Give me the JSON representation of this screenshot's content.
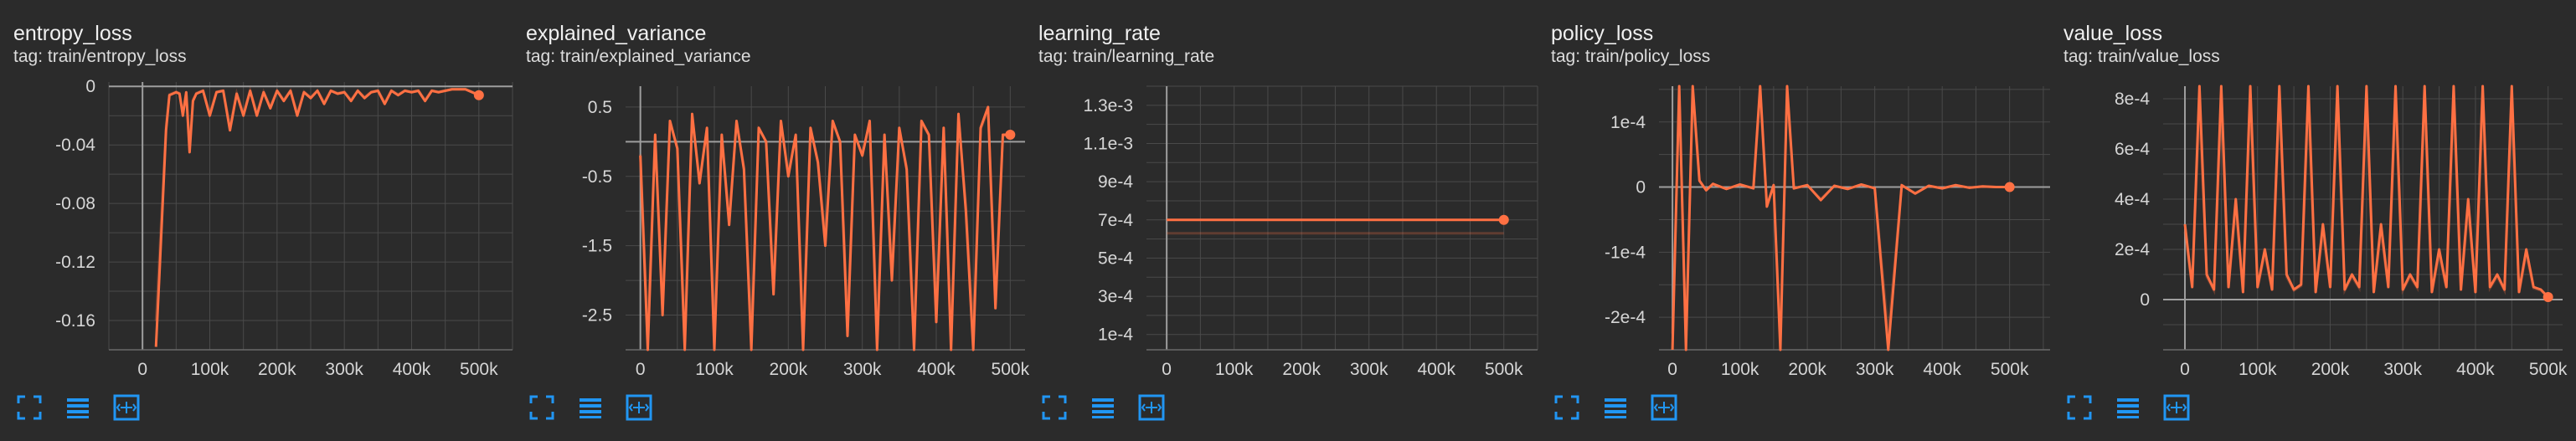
{
  "accent": "#ff7043",
  "grid_color": "#4a4a4a",
  "toolbar_icons": [
    "fullscreen-icon",
    "data-table-icon",
    "fit-domain-icon"
  ],
  "cards": [
    {
      "title": "entropy_loss",
      "tag": "tag: train/entropy_loss",
      "chart_data": {
        "type": "line",
        "x_ticks": [
          0,
          100000,
          200000,
          300000,
          400000,
          500000
        ],
        "x_tick_labels": [
          "0",
          "100k",
          "200k",
          "300k",
          "400k",
          "500k"
        ],
        "y_ticks": [
          0,
          -0.04,
          -0.08,
          -0.12,
          -0.16
        ],
        "y_tick_labels": [
          "0",
          "-0.04",
          "-0.08",
          "-0.12",
          "-0.16"
        ],
        "xlim": [
          -50000,
          550000
        ],
        "ylim": [
          -0.18,
          0.003
        ],
        "series": [
          {
            "x": [
              20000,
              25000,
              30000,
              35000,
              40000,
              45000,
              50000,
              55000,
              60000,
              65000,
              70000,
              75000,
              80000,
              90000,
              100000,
              110000,
              120000,
              130000,
              140000,
              150000,
              160000,
              170000,
              180000,
              190000,
              200000,
              210000,
              220000,
              230000,
              240000,
              250000,
              260000,
              270000,
              280000,
              290000,
              300000,
              310000,
              320000,
              330000,
              340000,
              350000,
              360000,
              370000,
              380000,
              390000,
              400000,
              410000,
              420000,
              430000,
              440000,
              450000,
              460000,
              470000,
              480000,
              490000,
              500000
            ],
            "y": [
              -0.178,
              -0.13,
              -0.08,
              -0.03,
              -0.006,
              -0.005,
              -0.004,
              -0.005,
              -0.02,
              -0.004,
              -0.045,
              -0.01,
              -0.005,
              -0.003,
              -0.02,
              -0.004,
              -0.003,
              -0.03,
              -0.005,
              -0.02,
              -0.003,
              -0.02,
              -0.004,
              -0.015,
              -0.003,
              -0.01,
              -0.003,
              -0.02,
              -0.004,
              -0.008,
              -0.003,
              -0.012,
              -0.003,
              -0.005,
              -0.004,
              -0.01,
              -0.003,
              -0.008,
              -0.004,
              -0.003,
              -0.012,
              -0.003,
              -0.006,
              -0.003,
              -0.004,
              -0.003,
              -0.01,
              -0.003,
              -0.004,
              -0.003,
              -0.002,
              -0.002,
              -0.002,
              -0.004,
              -0.006
            ]
          }
        ]
      }
    },
    {
      "title": "explained_variance",
      "tag": "tag: train/explained_variance",
      "chart_data": {
        "type": "line",
        "x_ticks": [
          0,
          100000,
          200000,
          300000,
          400000,
          500000
        ],
        "x_tick_labels": [
          "0",
          "100k",
          "200k",
          "300k",
          "400k",
          "500k"
        ],
        "y_ticks": [
          0.5,
          -0.5,
          -1.5,
          -2.5
        ],
        "y_tick_labels": [
          "0.5",
          "-0.5",
          "-1.5",
          "-2.5"
        ],
        "xlim": [
          -20000,
          520000
        ],
        "ylim": [
          -3.0,
          0.8
        ],
        "series": [
          {
            "x": [
              0,
              10000,
              20000,
              30000,
              40000,
              50000,
              60000,
              70000,
              80000,
              90000,
              100000,
              110000,
              120000,
              130000,
              140000,
              150000,
              160000,
              170000,
              180000,
              190000,
              200000,
              210000,
              220000,
              230000,
              240000,
              250000,
              260000,
              270000,
              280000,
              290000,
              300000,
              310000,
              320000,
              330000,
              340000,
              350000,
              360000,
              370000,
              380000,
              390000,
              400000,
              410000,
              420000,
              430000,
              440000,
              450000,
              460000,
              470000,
              480000,
              490000,
              500000
            ],
            "y": [
              -0.2,
              -3.0,
              0.1,
              -2.5,
              0.3,
              -0.1,
              -3.0,
              0.4,
              -0.6,
              0.2,
              -3.0,
              0.1,
              -1.2,
              0.3,
              -0.4,
              -3.0,
              0.2,
              0.0,
              -2.2,
              0.3,
              -0.5,
              0.1,
              -3.0,
              0.2,
              -0.3,
              -1.5,
              0.3,
              0.0,
              -2.8,
              0.1,
              -0.2,
              0.3,
              -3.0,
              0.1,
              -2.0,
              0.2,
              -0.4,
              -3.0,
              0.3,
              0.1,
              -2.6,
              0.2,
              -3.0,
              0.4,
              -1.0,
              -3.0,
              0.2,
              0.5,
              -2.4,
              0.1,
              0.1
            ]
          }
        ]
      }
    },
    {
      "title": "learning_rate",
      "tag": "tag: train/learning_rate",
      "chart_data": {
        "type": "line",
        "x_ticks": [
          0,
          100000,
          200000,
          300000,
          400000,
          500000
        ],
        "x_tick_labels": [
          "0",
          "100k",
          "200k",
          "300k",
          "400k",
          "500k"
        ],
        "y_ticks": [
          0.0013,
          0.0011,
          0.0009,
          0.0007,
          0.0005,
          0.0003,
          0.0001
        ],
        "y_tick_labels": [
          "1.3e-3",
          "1.1e-3",
          "9e-4",
          "7e-4",
          "5e-4",
          "3e-4",
          "1e-4"
        ],
        "xlim": [
          -30000,
          550000
        ],
        "ylim": [
          2e-05,
          0.0014
        ],
        "series": [
          {
            "x": [
              0,
              500000
            ],
            "y": [
              0.0007,
              0.0007
            ]
          }
        ]
      }
    },
    {
      "title": "policy_loss",
      "tag": "tag: train/policy_loss",
      "chart_data": {
        "type": "line",
        "x_ticks": [
          0,
          100000,
          200000,
          300000,
          400000,
          500000
        ],
        "x_tick_labels": [
          "0",
          "100k",
          "200k",
          "300k",
          "400k",
          "500k"
        ],
        "y_ticks": [
          0.0001,
          0,
          -0.0001,
          -0.0002
        ],
        "y_tick_labels": [
          "1e-4",
          "0",
          "-1e-4",
          "-2e-4"
        ],
        "xlim": [
          -20000,
          560000
        ],
        "ylim": [
          -0.00025,
          0.000155
        ],
        "series": [
          {
            "x": [
              0,
              10000,
              20000,
              30000,
              40000,
              50000,
              60000,
              80000,
              100000,
              120000,
              130000,
              140000,
              150000,
              160000,
              170000,
              180000,
              200000,
              220000,
              240000,
              260000,
              280000,
              300000,
              320000,
              340000,
              360000,
              380000,
              400000,
              420000,
              440000,
              460000,
              480000,
              500000
            ],
            "y": [
              -0.00025,
              0.000155,
              -0.00025,
              0.000155,
              1e-05,
              -5e-06,
              5e-06,
              -3e-06,
              4e-06,
              -2e-06,
              0.000155,
              -3e-05,
              3e-06,
              -0.00025,
              0.000155,
              -2e-06,
              3e-06,
              -2e-05,
              2e-06,
              -3e-06,
              4e-06,
              -2e-06,
              -0.00025,
              3e-06,
              -1e-05,
              2e-06,
              -2e-06,
              3e-06,
              -1e-06,
              1e-06,
              0.0,
              0.0
            ]
          }
        ]
      }
    },
    {
      "title": "value_loss",
      "tag": "tag: train/value_loss",
      "chart_data": {
        "type": "line",
        "x_ticks": [
          0,
          100000,
          200000,
          300000,
          400000,
          500000
        ],
        "x_tick_labels": [
          "0",
          "100k",
          "200k",
          "300k",
          "400k",
          "500k"
        ],
        "y_ticks": [
          0.0008,
          0.0006,
          0.0004,
          0.0002,
          0
        ],
        "y_tick_labels": [
          "8e-4",
          "6e-4",
          "4e-4",
          "2e-4",
          "0"
        ],
        "xlim": [
          -30000,
          520000
        ],
        "ylim": [
          -0.0002,
          0.00085
        ],
        "series": [
          {
            "x": [
              0,
              10000,
              20000,
              30000,
              40000,
              50000,
              60000,
              70000,
              80000,
              90000,
              100000,
              110000,
              120000,
              130000,
              140000,
              150000,
              160000,
              170000,
              180000,
              190000,
              200000,
              210000,
              220000,
              230000,
              240000,
              250000,
              260000,
              270000,
              280000,
              290000,
              300000,
              310000,
              320000,
              330000,
              340000,
              350000,
              360000,
              370000,
              380000,
              390000,
              400000,
              410000,
              420000,
              430000,
              440000,
              450000,
              460000,
              470000,
              480000,
              490000,
              500000
            ],
            "y": [
              0.0003,
              5e-05,
              0.00085,
              0.0001,
              4e-05,
              0.00085,
              5e-05,
              0.0004,
              3e-05,
              0.00085,
              5e-05,
              0.0002,
              4e-05,
              0.00085,
              0.0001,
              4e-05,
              6e-05,
              0.00085,
              3e-05,
              0.0003,
              5e-05,
              0.00085,
              4e-05,
              0.0001,
              5e-05,
              0.00085,
              3e-05,
              0.0003,
              5e-05,
              0.00085,
              4e-05,
              0.0001,
              5e-05,
              0.00085,
              3e-05,
              0.0002,
              5e-05,
              0.00085,
              4e-05,
              0.0004,
              3e-05,
              0.00085,
              5e-05,
              0.0001,
              4e-05,
              0.00085,
              3e-05,
              0.0002,
              5e-05,
              4e-05,
              1e-05
            ]
          }
        ]
      }
    }
  ]
}
